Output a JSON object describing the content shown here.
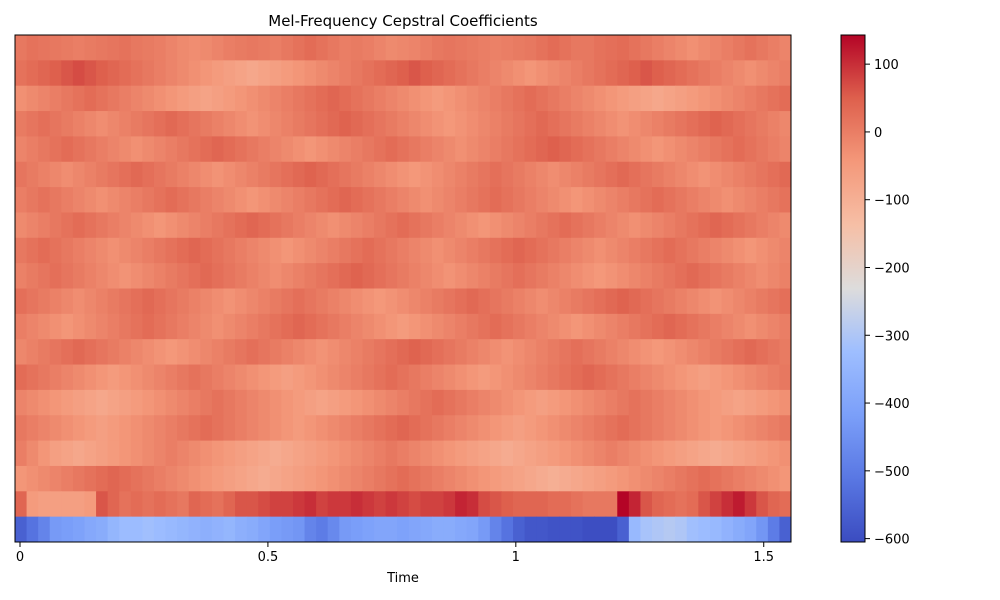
{
  "chart_data": {
    "type": "heatmap",
    "title": "Mel-Frequency Cepstral Coefficients",
    "xlabel": "Time",
    "ylabel": "",
    "x_range": [
      0,
      1.555
    ],
    "n_frames": 67,
    "n_coefficients": 20,
    "x_ticks": [
      {
        "value": 0,
        "label": "0"
      },
      {
        "value": 0.5,
        "label": "0.5"
      },
      {
        "value": 1,
        "label": "1"
      },
      {
        "value": 1.5,
        "label": "1.5"
      }
    ],
    "colorbar": {
      "colormap": "coolwarm",
      "vmin": -605,
      "vmax": 143,
      "ticks": [
        {
          "value": 100,
          "label": "100"
        },
        {
          "value": 0,
          "label": "0"
        },
        {
          "value": -100,
          "label": "−100"
        },
        {
          "value": -200,
          "label": "−200"
        },
        {
          "value": -300,
          "label": "−300"
        },
        {
          "value": -400,
          "label": "−400"
        },
        {
          "value": -500,
          "label": "−500"
        },
        {
          "value": -600,
          "label": "−600"
        }
      ]
    },
    "segments_note": "",
    "coeff0_values": [
      -560,
      -520,
      -480,
      -430,
      -420,
      -410,
      -390,
      -380,
      -350,
      -330,
      -330,
      -320,
      -330,
      -340,
      -350,
      -360,
      -370,
      -360,
      -350,
      -370,
      -380,
      -400,
      -420,
      -430,
      -440,
      -480,
      -500,
      -470,
      -430,
      -420,
      -410,
      -400,
      -400,
      -410,
      -400,
      -390,
      -380,
      -380,
      -390,
      -400,
      -430,
      -480,
      -520,
      -560,
      -580,
      -580,
      -590,
      -590,
      -590,
      -600,
      -600,
      -600,
      -560,
      -340,
      -310,
      -300,
      -290,
      -300,
      -320,
      -330,
      -340,
      -360,
      -380,
      -400,
      -440,
      -500,
      -560
    ],
    "coeff1_values": [
      40,
      -50,
      -60,
      -60,
      -60,
      -60,
      -50,
      60,
      40,
      20,
      30,
      20,
      30,
      20,
      10,
      40,
      30,
      20,
      40,
      60,
      60,
      70,
      80,
      80,
      90,
      100,
      80,
      90,
      90,
      100,
      90,
      80,
      90,
      80,
      70,
      80,
      80,
      90,
      110,
      100,
      70,
      60,
      50,
      40,
      40,
      40,
      30,
      30,
      20,
      10,
      10,
      10,
      143,
      110,
      60,
      40,
      30,
      20,
      30,
      60,
      80,
      100,
      120,
      90,
      60,
      40,
      30
    ],
    "rows_band_values": [
      [
        10,
        20,
        15,
        10,
        5,
        0,
        5,
        10,
        15,
        20,
        10,
        5,
        0,
        -10,
        -20,
        -25,
        -20,
        -10,
        0,
        5,
        10,
        5,
        0,
        10,
        20,
        30,
        20,
        10,
        0,
        5,
        0,
        -10,
        -20,
        -15,
        -10,
        0,
        10,
        15,
        10,
        5,
        0,
        -5,
        0,
        5,
        10,
        20,
        30,
        20,
        10,
        10,
        20,
        25,
        30,
        20,
        10,
        0,
        -10,
        -20,
        -30,
        -20,
        -10,
        0,
        10,
        20,
        10,
        0,
        -10
      ],
      [
        20,
        30,
        40,
        50,
        60,
        70,
        60,
        50,
        40,
        30,
        20,
        10,
        0,
        -10,
        -20,
        -30,
        -40,
        -50,
        -60,
        -70,
        -80,
        -70,
        -60,
        -50,
        -40,
        -30,
        -20,
        -10,
        0,
        10,
        20,
        30,
        40,
        50,
        60,
        50,
        40,
        30,
        20,
        10,
        0,
        -10,
        -20,
        -30,
        -40,
        -30,
        -20,
        -10,
        0,
        10,
        20,
        30,
        40,
        50,
        60,
        50,
        40,
        30,
        20,
        10,
        0,
        -10,
        -20,
        -30,
        -20,
        -10,
        0
      ],
      [
        -30,
        -20,
        -10,
        0,
        10,
        20,
        30,
        20,
        10,
        0,
        -10,
        -20,
        -30,
        -40,
        -50,
        -60,
        -70,
        -60,
        -50,
        -40,
        -30,
        -20,
        -10,
        0,
        10,
        20,
        30,
        40,
        30,
        20,
        10,
        0,
        -10,
        -20,
        -30,
        -40,
        -50,
        -40,
        -30,
        -20,
        -10,
        0,
        10,
        20,
        30,
        20,
        10,
        0,
        -10,
        -20,
        -30,
        -40,
        -50,
        -60,
        -70,
        -80,
        -70,
        -60,
        -50,
        -40,
        -30,
        -20,
        -10,
        0,
        10,
        20,
        30
      ],
      [
        5,
        15,
        25,
        15,
        5,
        -5,
        -15,
        -25,
        -15,
        -5,
        5,
        15,
        25,
        35,
        25,
        15,
        5,
        -5,
        -15,
        -25,
        -35,
        -25,
        -15,
        -5,
        5,
        15,
        25,
        35,
        45,
        35,
        25,
        15,
        5,
        -5,
        -15,
        -25,
        -35,
        -45,
        -35,
        -25,
        -15,
        -5,
        5,
        15,
        25,
        35,
        25,
        15,
        5,
        -5,
        -15,
        -25,
        -35,
        -25,
        -15,
        -5,
        5,
        15,
        25,
        35,
        45,
        35,
        25,
        15,
        5,
        -5,
        -15
      ],
      [
        -10,
        0,
        10,
        20,
        30,
        20,
        10,
        0,
        -10,
        -20,
        -30,
        -20,
        -10,
        0,
        10,
        20,
        30,
        40,
        30,
        20,
        10,
        0,
        -10,
        -20,
        -30,
        -40,
        -30,
        -20,
        -10,
        0,
        10,
        20,
        30,
        20,
        10,
        0,
        -10,
        -20,
        -30,
        -20,
        -10,
        0,
        10,
        20,
        30,
        40,
        50,
        40,
        30,
        20,
        10,
        0,
        -10,
        -20,
        -30,
        -40,
        -30,
        -20,
        -10,
        0,
        10,
        20,
        30,
        20,
        10,
        0,
        -10
      ],
      [
        15,
        5,
        -5,
        -15,
        -25,
        -15,
        -5,
        5,
        15,
        25,
        35,
        25,
        15,
        5,
        -5,
        -15,
        -25,
        -35,
        -25,
        -15,
        -5,
        5,
        15,
        25,
        35,
        45,
        35,
        25,
        15,
        5,
        -5,
        -15,
        -25,
        -35,
        -45,
        -35,
        -25,
        -15,
        -5,
        5,
        15,
        25,
        15,
        5,
        -5,
        -15,
        -25,
        -15,
        -5,
        5,
        15,
        25,
        35,
        25,
        15,
        5,
        -5,
        -15,
        -25,
        -35,
        -25,
        -15,
        -5,
        5,
        15,
        25,
        35
      ],
      [
        0,
        10,
        20,
        10,
        0,
        -10,
        -20,
        -30,
        -20,
        -10,
        0,
        10,
        20,
        30,
        20,
        10,
        0,
        -10,
        -20,
        -30,
        -40,
        -30,
        -20,
        -10,
        0,
        10,
        20,
        30,
        40,
        30,
        20,
        10,
        0,
        -10,
        -20,
        -30,
        -20,
        -10,
        0,
        10,
        20,
        30,
        20,
        10,
        0,
        -10,
        -20,
        -30,
        -40,
        -30,
        -20,
        -10,
        0,
        10,
        20,
        30,
        20,
        10,
        0,
        -10,
        -20,
        -30,
        -20,
        -10,
        0,
        10,
        20
      ],
      [
        -20,
        -10,
        0,
        10,
        20,
        30,
        20,
        10,
        0,
        -10,
        -20,
        -30,
        -40,
        -30,
        -20,
        -10,
        0,
        10,
        20,
        30,
        40,
        30,
        20,
        10,
        0,
        -10,
        -20,
        -30,
        -20,
        -10,
        0,
        10,
        20,
        30,
        20,
        10,
        0,
        -10,
        -20,
        -30,
        -40,
        -30,
        -20,
        -10,
        0,
        10,
        20,
        30,
        20,
        10,
        0,
        -10,
        -20,
        -30,
        -20,
        -10,
        0,
        10,
        20,
        30,
        40,
        30,
        20,
        10,
        0,
        -10,
        -20
      ],
      [
        10,
        20,
        30,
        20,
        10,
        0,
        -10,
        -20,
        -30,
        -20,
        -10,
        0,
        10,
        20,
        30,
        40,
        30,
        20,
        10,
        0,
        -10,
        -20,
        -30,
        -40,
        -30,
        -20,
        -10,
        0,
        10,
        20,
        30,
        20,
        10,
        0,
        -10,
        -20,
        -30,
        -20,
        -10,
        0,
        10,
        20,
        30,
        40,
        30,
        20,
        10,
        0,
        -10,
        -20,
        -30,
        -20,
        -10,
        0,
        10,
        20,
        30,
        20,
        10,
        0,
        -10,
        -20,
        -30,
        -40,
        -30,
        -20,
        -10
      ],
      [
        -5,
        5,
        15,
        25,
        15,
        5,
        -5,
        -15,
        -25,
        -35,
        -25,
        -15,
        -5,
        5,
        15,
        25,
        35,
        25,
        15,
        5,
        -5,
        -15,
        -25,
        -15,
        -5,
        5,
        15,
        25,
        35,
        45,
        35,
        25,
        15,
        5,
        -5,
        -15,
        -25,
        -35,
        -25,
        -15,
        -5,
        5,
        15,
        25,
        15,
        5,
        -5,
        -15,
        -25,
        -35,
        -45,
        -35,
        -25,
        -15,
        -5,
        5,
        15,
        25,
        35,
        25,
        15,
        5,
        -5,
        -15,
        -25,
        -15,
        -5
      ],
      [
        25,
        15,
        5,
        -5,
        -15,
        -25,
        -15,
        -5,
        5,
        15,
        25,
        35,
        25,
        15,
        5,
        -5,
        -15,
        -25,
        -35,
        -25,
        -15,
        -5,
        5,
        15,
        25,
        15,
        5,
        -5,
        -15,
        -25,
        -35,
        -45,
        -35,
        -25,
        -15,
        -5,
        5,
        15,
        25,
        35,
        25,
        15,
        5,
        -5,
        -15,
        -25,
        -15,
        -5,
        5,
        15,
        25,
        35,
        45,
        35,
        25,
        15,
        5,
        -5,
        -15,
        -25,
        -35,
        -25,
        -15,
        -5,
        5,
        15,
        25
      ],
      [
        0,
        -10,
        -20,
        -30,
        -40,
        -30,
        -20,
        -10,
        0,
        10,
        20,
        30,
        20,
        10,
        0,
        -10,
        -20,
        -30,
        -20,
        -10,
        0,
        10,
        20,
        30,
        40,
        30,
        20,
        10,
        0,
        -10,
        -20,
        -30,
        -40,
        -50,
        -40,
        -30,
        -20,
        -10,
        0,
        10,
        20,
        30,
        20,
        10,
        0,
        -10,
        -20,
        -30,
        -40,
        -30,
        -20,
        -10,
        0,
        10,
        20,
        30,
        40,
        30,
        20,
        10,
        0,
        -10,
        -20,
        -30,
        -20,
        -10,
        0
      ],
      [
        -15,
        -5,
        5,
        15,
        25,
        35,
        25,
        15,
        5,
        -5,
        -15,
        -25,
        -35,
        -45,
        -35,
        -25,
        -15,
        -5,
        5,
        15,
        25,
        15,
        5,
        -5,
        -15,
        -25,
        -35,
        -25,
        -15,
        -5,
        5,
        15,
        25,
        35,
        45,
        35,
        25,
        15,
        5,
        -5,
        -15,
        -25,
        -35,
        -25,
        -15,
        -5,
        5,
        15,
        25,
        15,
        5,
        -5,
        -15,
        -25,
        -35,
        -45,
        -35,
        -25,
        -15,
        -5,
        5,
        15,
        25,
        35,
        25,
        15,
        5
      ],
      [
        30,
        20,
        10,
        0,
        -10,
        -20,
        -30,
        -40,
        -50,
        -40,
        -30,
        -20,
        -10,
        0,
        10,
        20,
        10,
        0,
        -10,
        -20,
        -30,
        -40,
        -50,
        -60,
        -50,
        -40,
        -30,
        -20,
        -10,
        0,
        10,
        20,
        30,
        20,
        10,
        0,
        -10,
        -20,
        -30,
        -40,
        -50,
        -40,
        -30,
        -20,
        -10,
        0,
        10,
        20,
        30,
        40,
        30,
        20,
        10,
        0,
        -10,
        -20,
        -30,
        -40,
        -50,
        -60,
        -50,
        -40,
        -30,
        -20,
        -10,
        0,
        10
      ],
      [
        -10,
        -20,
        -30,
        -40,
        -50,
        -60,
        -70,
        -80,
        -70,
        -60,
        -50,
        -40,
        -30,
        -20,
        -10,
        0,
        10,
        20,
        10,
        0,
        -10,
        -20,
        -30,
        -40,
        -50,
        -60,
        -70,
        -60,
        -50,
        -40,
        -30,
        -20,
        -10,
        0,
        10,
        20,
        30,
        20,
        10,
        0,
        -10,
        -20,
        -30,
        -40,
        -50,
        -60,
        -50,
        -40,
        -30,
        -20,
        -10,
        0,
        10,
        20,
        10,
        0,
        -10,
        -20,
        -30,
        -40,
        -50,
        -60,
        -70,
        -60,
        -50,
        -40,
        -30
      ],
      [
        10,
        0,
        -10,
        -20,
        -30,
        -40,
        -50,
        -60,
        -50,
        -40,
        -30,
        -20,
        -10,
        0,
        10,
        20,
        30,
        20,
        10,
        0,
        -10,
        -20,
        -30,
        -40,
        -50,
        -40,
        -30,
        -20,
        -10,
        0,
        10,
        20,
        30,
        40,
        30,
        20,
        10,
        0,
        -10,
        -20,
        -30,
        -40,
        -50,
        -60,
        -50,
        -40,
        -30,
        -20,
        -10,
        0,
        10,
        20,
        30,
        20,
        10,
        0,
        -10,
        -20,
        -30,
        -40,
        -50,
        -40,
        -30,
        -20,
        -10,
        0,
        10
      ],
      [
        0,
        -20,
        -40,
        -60,
        -70,
        -80,
        -70,
        -60,
        -50,
        -40,
        -30,
        -20,
        -10,
        0,
        -10,
        -20,
        -30,
        -40,
        -50,
        -60,
        -70,
        -80,
        -90,
        -80,
        -70,
        -60,
        -50,
        -40,
        -30,
        -20,
        -10,
        0,
        10,
        0,
        -10,
        -20,
        -30,
        -40,
        -50,
        -60,
        -70,
        -80,
        -90,
        -80,
        -70,
        -60,
        -50,
        -40,
        -30,
        -20,
        -10,
        0,
        -10,
        -20,
        -30,
        -40,
        -50,
        -60,
        -70,
        -80,
        -90,
        -80,
        -70,
        -60,
        -50,
        -40,
        -30
      ],
      [
        -40,
        -30,
        -20,
        -10,
        0,
        10,
        20,
        30,
        40,
        30,
        20,
        10,
        0,
        -10,
        -20,
        -30,
        -40,
        -50,
        -60,
        -70,
        -80,
        -90,
        -80,
        -70,
        -60,
        -50,
        -40,
        -30,
        -20,
        -10,
        0,
        10,
        20,
        30,
        20,
        10,
        0,
        -10,
        -20,
        -30,
        -40,
        -50,
        -60,
        -70,
        -80,
        -90,
        -100,
        -90,
        -80,
        -70,
        -60,
        -50,
        -40,
        -30,
        -20,
        -10,
        0,
        10,
        20,
        30,
        20,
        10,
        0,
        -10,
        -20,
        -30,
        -40
      ]
    ]
  }
}
